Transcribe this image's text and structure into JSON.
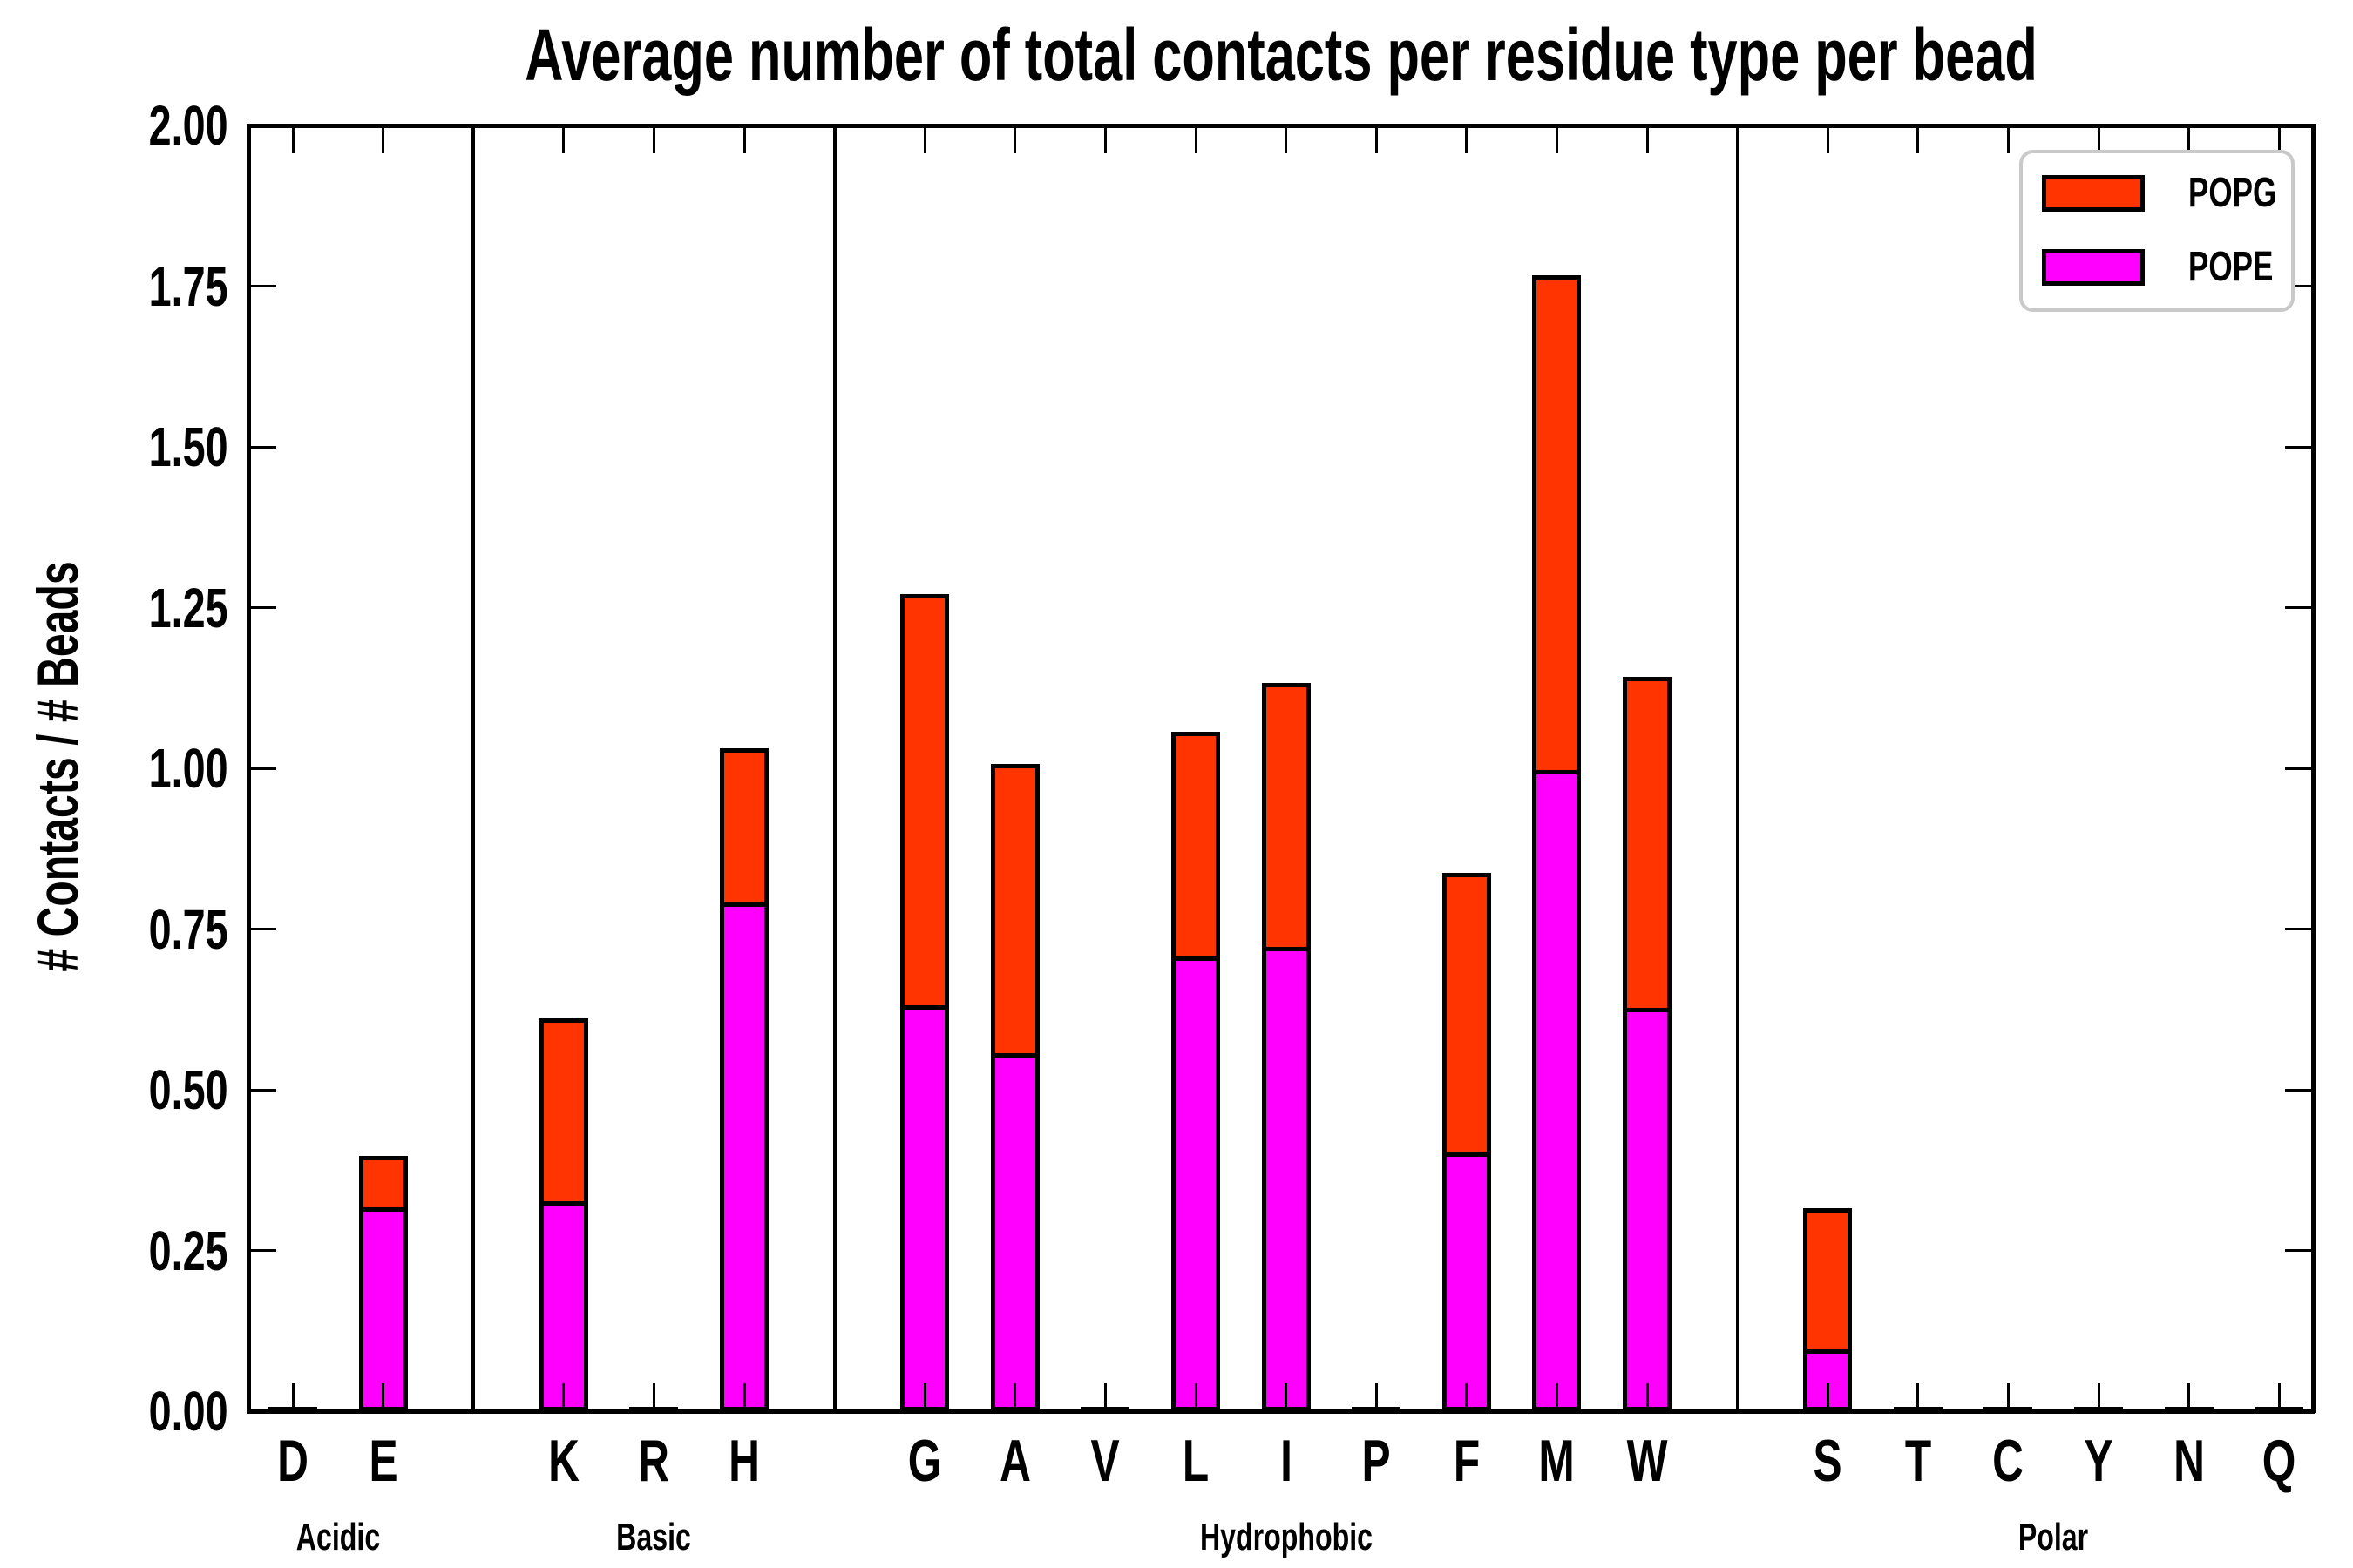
{
  "figure": {
    "background": "#ffffff"
  },
  "legend": {
    "items": [
      {
        "label": "POPG",
        "color": "#FF3400"
      },
      {
        "label": "POPE",
        "color": "#FF00FF"
      }
    ]
  },
  "chart_data": {
    "type": "bar",
    "stacked": true,
    "title": "Average number of total contacts per residue type per bead",
    "xlabel": "",
    "ylabel": "# Contacts / # Beads",
    "categories": [
      "D",
      "E",
      "K",
      "R",
      "H",
      "G",
      "A",
      "V",
      "L",
      "I",
      "P",
      "F",
      "M",
      "W",
      "S",
      "T",
      "C",
      "Y",
      "N",
      "Q"
    ],
    "groups": [
      {
        "label": "Acidic",
        "residues": [
          "D",
          "E"
        ]
      },
      {
        "label": "Basic",
        "residues": [
          "K",
          "R",
          "H"
        ]
      },
      {
        "label": "Hydrophobic",
        "residues": [
          "G",
          "A",
          "V",
          "L",
          "I",
          "P",
          "F",
          "M",
          "W"
        ]
      },
      {
        "label": "Polar",
        "residues": [
          "S",
          "T",
          "C",
          "Y",
          "N",
          "Q"
        ]
      }
    ],
    "series": [
      {
        "name": "POPE",
        "color": "#FF00FF",
        "values": [
          0,
          0.31,
          0.32,
          0,
          0.785,
          0.625,
          0.55,
          0,
          0.7,
          0.715,
          0,
          0.395,
          0.99,
          0.62,
          0.09,
          0,
          0,
          0,
          0,
          0
        ]
      },
      {
        "name": "POPG",
        "color": "#FF3400",
        "values": [
          0,
          0.08,
          0.285,
          0,
          0.24,
          0.64,
          0.45,
          0,
          0.35,
          0.41,
          0,
          0.435,
          0.77,
          0.515,
          0.22,
          0,
          0,
          0,
          0,
          0
        ]
      }
    ],
    "totals": [
      0,
      0.39,
      0.605,
      0,
      1.025,
      1.265,
      1.0,
      0,
      1.05,
      1.125,
      0,
      0.83,
      1.76,
      1.135,
      0.31,
      0,
      0,
      0,
      0,
      0
    ],
    "ylim": [
      0,
      2
    ],
    "yticks": [
      "0.00",
      "0.25",
      "0.50",
      "0.75",
      "1.00",
      "1.25",
      "1.50",
      "1.75",
      "2.00"
    ],
    "bar_edge_color": "#000000",
    "legend_position": "upper right",
    "grid": false
  }
}
